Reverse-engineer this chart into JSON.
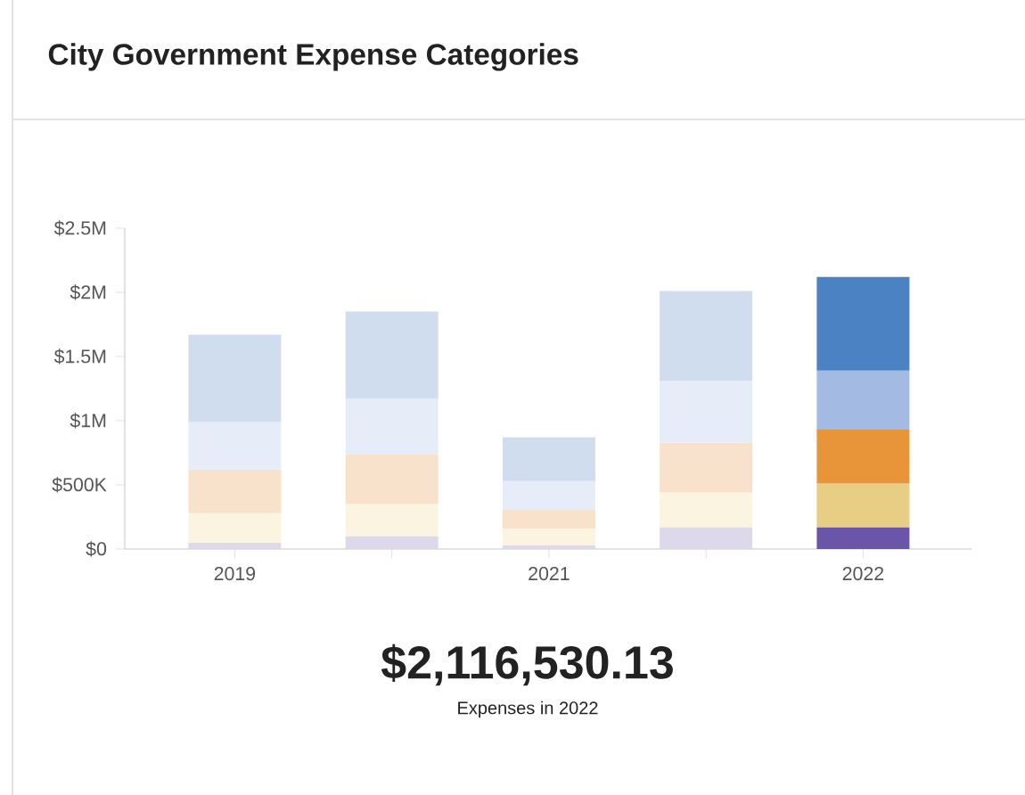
{
  "chart_data": {
    "type": "bar",
    "stacked": true,
    "title": "City Government Expense Categories",
    "categories": [
      "2019",
      null,
      "2021",
      null,
      "2022"
    ],
    "series": [
      {
        "values": [
          50000,
          100000,
          30000,
          170000,
          170000
        ],
        "colors": [
          "#ddd8ea",
          "#ddd8ea",
          "#ddd8ea",
          "#ddd8ea",
          "#6b55a8"
        ]
      },
      {
        "values": [
          230000,
          250000,
          130000,
          270000,
          340000
        ],
        "colors": [
          "#fbf4e0",
          "#fbf4e0",
          "#fbf4e0",
          "#fbf4e0",
          "#e8cd85"
        ]
      },
      {
        "values": [
          340000,
          390000,
          150000,
          390000,
          420000
        ],
        "colors": [
          "#f9e2cb",
          "#f9e2cb",
          "#f9e2cb",
          "#f9e2cb",
          "#e8953a"
        ]
      },
      {
        "values": [
          370000,
          430000,
          220000,
          480000,
          460000
        ],
        "colors": [
          "#e6edf8",
          "#e6edf8",
          "#e6edf8",
          "#e6edf8",
          "#a3bbe3"
        ]
      },
      {
        "values": [
          680000,
          680000,
          340000,
          700000,
          730000
        ],
        "colors": [
          "#d0ddee",
          "#d0ddee",
          "#d0ddee",
          "#d0ddee",
          "#4a82c4"
        ]
      }
    ],
    "ylim": [
      0,
      2500000
    ],
    "yticks": [
      {
        "value": 0,
        "label": "$0"
      },
      {
        "value": 500000,
        "label": "$500K"
      },
      {
        "value": 1000000,
        "label": "$1M"
      },
      {
        "value": 1500000,
        "label": "$1.5M"
      },
      {
        "value": 2000000,
        "label": "$2M"
      },
      {
        "value": 2500000,
        "label": "$2.5M"
      }
    ],
    "grid": false,
    "annotations": [
      "$2,116,530.13",
      "Expenses in 2022"
    ]
  }
}
